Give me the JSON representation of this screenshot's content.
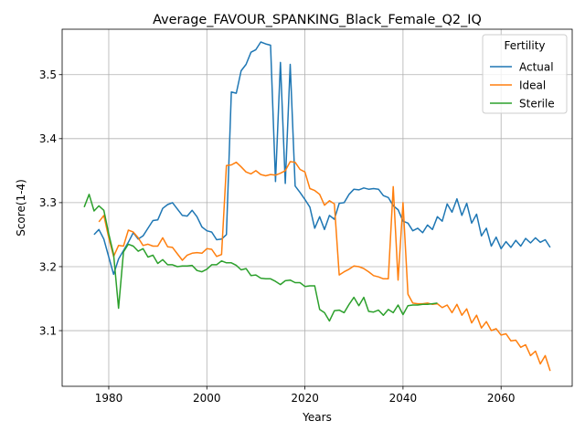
{
  "chart_data": {
    "type": "line",
    "title": "Average_FAVOUR_SPANKING_Black_Female_Q2_IQ",
    "xlabel": "Years",
    "ylabel": "Score(1-4)",
    "xlim": [
      1970.5,
      2074.5
    ],
    "ylim": [
      3.013,
      3.571
    ],
    "xticks": [
      1980,
      2000,
      2020,
      2040,
      2060
    ],
    "yticks": [
      3.1,
      3.2,
      3.3,
      3.4,
      3.5
    ],
    "grid": true,
    "legend": {
      "title": "Fertility",
      "placement": "top-right"
    },
    "series": [
      {
        "name": "Actual",
        "color": "#1f77b4",
        "x": [
          1977,
          1978,
          1979,
          1980,
          1981,
          1982,
          1983,
          1984,
          1985,
          1986,
          1987,
          1988,
          1989,
          1990,
          1991,
          1992,
          1993,
          1994,
          1995,
          1996,
          1997,
          1998,
          1999,
          2000,
          2001,
          2002,
          2003,
          2004,
          2005,
          2006,
          2007,
          2008,
          2009,
          2010,
          2011,
          2012,
          2013,
          2014,
          2015,
          2016,
          2017,
          2018,
          2019,
          2020,
          2021,
          2022,
          2023,
          2024,
          2025,
          2026,
          2027,
          2028,
          2029,
          2030,
          2031,
          2032,
          2033,
          2034,
          2035,
          2036,
          2037,
          2038,
          2039,
          2040,
          2041,
          2042,
          2043,
          2044,
          2045,
          2046,
          2047,
          2048,
          2049,
          2050,
          2051,
          2052,
          2053,
          2054,
          2055,
          2056,
          2057,
          2058,
          2059,
          2060,
          2061,
          2062,
          2063,
          2064,
          2065,
          2066,
          2067,
          2068,
          2069,
          2070
        ],
        "y": [
          3.25,
          3.258,
          3.243,
          3.215,
          3.188,
          3.212,
          3.225,
          3.238,
          3.253,
          3.243,
          3.248,
          3.26,
          3.272,
          3.273,
          3.291,
          3.297,
          3.3,
          3.29,
          3.28,
          3.279,
          3.288,
          3.278,
          3.262,
          3.256,
          3.254,
          3.242,
          3.243,
          3.25,
          3.473,
          3.471,
          3.506,
          3.516,
          3.535,
          3.539,
          3.551,
          3.548,
          3.546,
          3.333,
          3.519,
          3.33,
          3.516,
          3.326,
          3.316,
          3.305,
          3.293,
          3.26,
          3.278,
          3.258,
          3.28,
          3.274,
          3.299,
          3.3,
          3.313,
          3.321,
          3.32,
          3.323,
          3.321,
          3.322,
          3.321,
          3.311,
          3.308,
          3.295,
          3.289,
          3.271,
          3.268,
          3.256,
          3.26,
          3.253,
          3.265,
          3.258,
          3.278,
          3.271,
          3.298,
          3.285,
          3.306,
          3.28,
          3.299,
          3.268,
          3.282,
          3.248,
          3.26,
          3.232,
          3.246,
          3.228,
          3.239,
          3.23,
          3.241,
          3.232,
          3.244,
          3.237,
          3.245,
          3.238,
          3.242,
          3.23
        ]
      },
      {
        "name": "Ideal",
        "color": "#ff7f0e",
        "x": [
          1978,
          1979,
          1980,
          1981,
          1982,
          1983,
          1984,
          1985,
          1986,
          1987,
          1988,
          1989,
          1990,
          1991,
          1992,
          1993,
          1994,
          1995,
          1996,
          1997,
          1998,
          1999,
          2000,
          2001,
          2002,
          2003,
          2004,
          2005,
          2006,
          2007,
          2008,
          2009,
          2010,
          2011,
          2012,
          2013,
          2014,
          2015,
          2016,
          2017,
          2018,
          2019,
          2020,
          2021,
          2022,
          2023,
          2024,
          2025,
          2026,
          2027,
          2028,
          2029,
          2030,
          2031,
          2032,
          2033,
          2034,
          2035,
          2036,
          2037,
          2038,
          2039,
          2040,
          2041,
          2042,
          2043,
          2044,
          2045,
          2046,
          2047,
          2048,
          2049,
          2050,
          2051,
          2052,
          2053,
          2054,
          2055,
          2056,
          2057,
          2058,
          2059,
          2060,
          2061,
          2062,
          2063,
          2064,
          2065,
          2066,
          2067,
          2068,
          2069,
          2070
        ],
        "y": [
          3.27,
          3.28,
          3.245,
          3.216,
          3.233,
          3.232,
          3.257,
          3.254,
          3.245,
          3.233,
          3.235,
          3.232,
          3.232,
          3.245,
          3.231,
          3.23,
          3.22,
          3.21,
          3.218,
          3.221,
          3.222,
          3.221,
          3.228,
          3.227,
          3.216,
          3.219,
          3.358,
          3.359,
          3.363,
          3.356,
          3.348,
          3.345,
          3.35,
          3.344,
          3.342,
          3.344,
          3.343,
          3.346,
          3.35,
          3.364,
          3.363,
          3.352,
          3.348,
          3.322,
          3.319,
          3.313,
          3.296,
          3.303,
          3.298,
          3.187,
          3.192,
          3.196,
          3.201,
          3.2,
          3.197,
          3.192,
          3.186,
          3.184,
          3.181,
          3.181,
          3.325,
          3.179,
          3.3,
          3.157,
          3.143,
          3.142,
          3.142,
          3.143,
          3.141,
          3.142,
          3.136,
          3.14,
          3.128,
          3.141,
          3.124,
          3.134,
          3.112,
          3.124,
          3.104,
          3.114,
          3.1,
          3.103,
          3.093,
          3.095,
          3.084,
          3.085,
          3.074,
          3.078,
          3.061,
          3.068,
          3.048,
          3.061,
          3.037
        ]
      },
      {
        "name": "Sterile",
        "color": "#2ca02c",
        "x": [
          1975,
          1976,
          1977,
          1978,
          1979,
          1980,
          1981,
          1982,
          1983,
          1984,
          1985,
          1986,
          1987,
          1988,
          1989,
          1990,
          1991,
          1992,
          1993,
          1994,
          1995,
          1996,
          1997,
          1998,
          1999,
          2000,
          2001,
          2002,
          2003,
          2004,
          2005,
          2006,
          2007,
          2008,
          2009,
          2010,
          2011,
          2012,
          2013,
          2014,
          2015,
          2016,
          2017,
          2018,
          2019,
          2020,
          2021,
          2022,
          2023,
          2024,
          2025,
          2026,
          2027,
          2028,
          2029,
          2030,
          2031,
          2032,
          2033,
          2034,
          2035,
          2036,
          2037,
          2038,
          2039,
          2040,
          2041,
          2042,
          2043,
          2044,
          2045,
          2046,
          2047
        ],
        "y": [
          3.293,
          3.313,
          3.287,
          3.295,
          3.288,
          3.251,
          3.219,
          3.135,
          3.223,
          3.235,
          3.232,
          3.224,
          3.228,
          3.215,
          3.218,
          3.205,
          3.211,
          3.203,
          3.203,
          3.2,
          3.201,
          3.201,
          3.202,
          3.194,
          3.192,
          3.196,
          3.203,
          3.203,
          3.209,
          3.206,
          3.206,
          3.202,
          3.195,
          3.197,
          3.186,
          3.187,
          3.182,
          3.181,
          3.181,
          3.177,
          3.172,
          3.178,
          3.179,
          3.175,
          3.175,
          3.169,
          3.17,
          3.17,
          3.133,
          3.128,
          3.115,
          3.131,
          3.132,
          3.128,
          3.141,
          3.152,
          3.139,
          3.152,
          3.13,
          3.129,
          3.132,
          3.124,
          3.133,
          3.128,
          3.14,
          3.125,
          3.139,
          3.14,
          3.14,
          3.141,
          3.141,
          3.142,
          3.143
        ]
      }
    ]
  }
}
